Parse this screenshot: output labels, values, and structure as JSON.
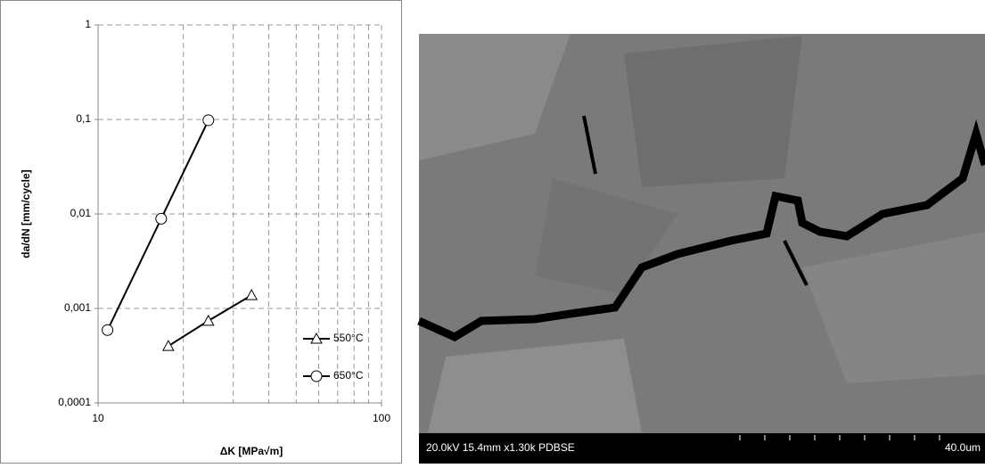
{
  "chart_data": {
    "type": "line",
    "x_label": "ΔK [MPa√m]",
    "y_label": "da/dN [mm/cycle]",
    "xscale": "log",
    "yscale": "log",
    "xlim": [
      10,
      100
    ],
    "xticks": [
      10,
      100
    ],
    "x_minor_gridlines": [
      20,
      30,
      40,
      50,
      60,
      70,
      80,
      90
    ],
    "ylim": [
      0.0001,
      1
    ],
    "yticks": [
      {
        "value": 0.0001,
        "label": "0,0001"
      },
      {
        "value": 0.001,
        "label": "0,001"
      },
      {
        "value": 0.01,
        "label": "0,01"
      },
      {
        "value": 0.1,
        "label": "0,1"
      },
      1
    ],
    "grid": true,
    "legend": "right",
    "series": [
      {
        "name": "550°C",
        "color": "#000000",
        "marker": "triangle",
        "x": [
          17.7,
          24.5,
          34.8
        ],
        "values": [
          0.0004,
          0.00074,
          0.00138
        ]
      },
      {
        "name": "650°C",
        "color": "#000000",
        "marker": "circle",
        "x": [
          10.8,
          16.7,
          24.5
        ],
        "values": [
          0.00059,
          0.0089,
          0.098
        ]
      }
    ]
  },
  "image": {
    "caption": "20.0kV 15.4mm x1.30k PDBSE",
    "scale_label": "40.0um"
  }
}
